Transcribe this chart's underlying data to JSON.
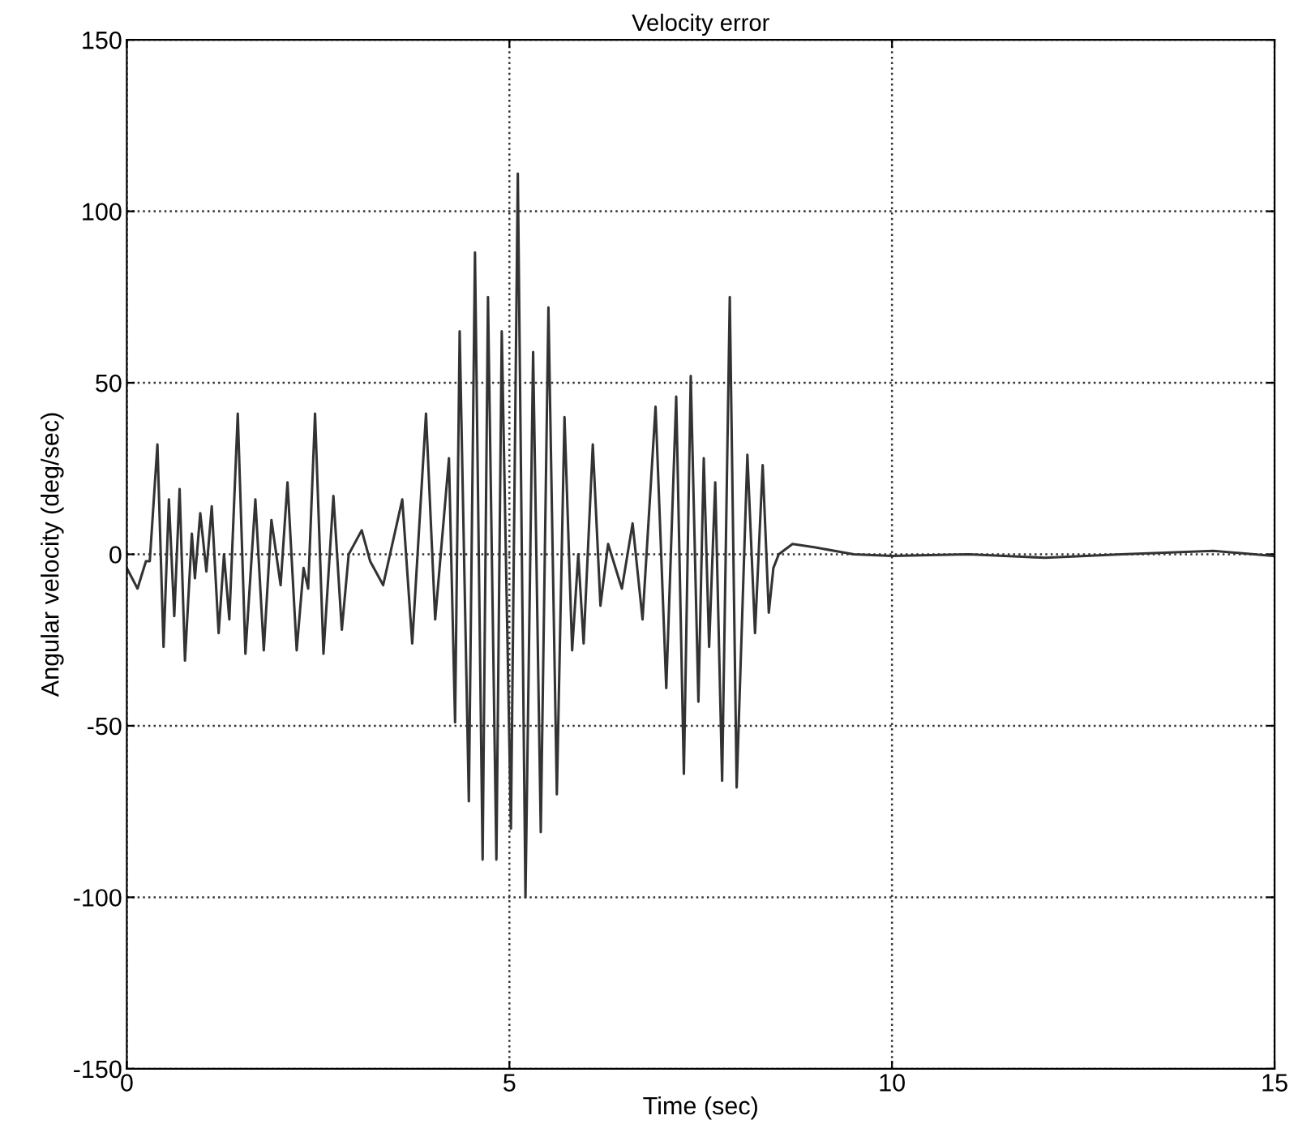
{
  "chart_data": {
    "type": "line",
    "title": "Velocity error",
    "xlabel": "Time (sec)",
    "ylabel": "Angular velocity (deg/sec)",
    "xlim": [
      0,
      15
    ],
    "xticks": [
      0,
      5,
      10,
      15
    ],
    "ylim": [
      -150,
      150
    ],
    "yticks": [
      -150,
      -100,
      -50,
      0,
      50,
      100,
      150
    ],
    "grid": true,
    "marker": "none",
    "series": [
      {
        "color": "#333333",
        "x": [
          0,
          0.14,
          0.25,
          0.3,
          0.4,
          0.48,
          0.55,
          0.62,
          0.69,
          0.76,
          0.85,
          0.89,
          0.96,
          1.04,
          1.11,
          1.2,
          1.27,
          1.34,
          1.45,
          1.55,
          1.68,
          1.79,
          1.89,
          2.01,
          2.1,
          2.22,
          2.31,
          2.37,
          2.46,
          2.57,
          2.7,
          2.81,
          2.9,
          3.07,
          3.18,
          3.35,
          3.6,
          3.73,
          3.91,
          4.03,
          4.21,
          4.29,
          4.35,
          4.47,
          4.55,
          4.65,
          4.72,
          4.83,
          4.9,
          5.02,
          5.11,
          5.21,
          5.31,
          5.41,
          5.51,
          5.62,
          5.72,
          5.82,
          5.9,
          5.97,
          6.09,
          6.19,
          6.29,
          6.47,
          6.61,
          6.74,
          6.91,
          7.05,
          7.18,
          7.28,
          7.37,
          7.47,
          7.54,
          7.61,
          7.69,
          7.78,
          7.88,
          7.97,
          8.11,
          8.21,
          8.31,
          8.39,
          8.45,
          8.52,
          8.7,
          9.0,
          9.5,
          10,
          11,
          12,
          13,
          14.2,
          15
        ],
        "values": [
          -4,
          -10,
          -2,
          -2,
          32,
          -27,
          16,
          -18,
          19,
          -31,
          6,
          -7,
          12,
          -5,
          14,
          -23,
          0,
          -19,
          41,
          -29,
          16,
          -28,
          10,
          -9,
          21,
          -28,
          -4,
          -10,
          41,
          -29,
          17,
          -22,
          0,
          7,
          -2,
          -9,
          16,
          -26,
          41,
          -19,
          28,
          -49,
          65,
          -72,
          88,
          -89,
          75,
          -89,
          65,
          -80,
          111,
          -100,
          59,
          -81,
          72,
          -70,
          40,
          -28,
          0,
          -26,
          32,
          -15,
          3,
          -10,
          9,
          -19,
          43,
          -39,
          46,
          -64,
          52,
          -43,
          28,
          -27,
          21,
          -66,
          75,
          -68,
          29,
          -23,
          26,
          -17,
          -4,
          0,
          3,
          2,
          0,
          -0.5,
          0,
          -1,
          0,
          1,
          -0.5
        ]
      }
    ]
  }
}
